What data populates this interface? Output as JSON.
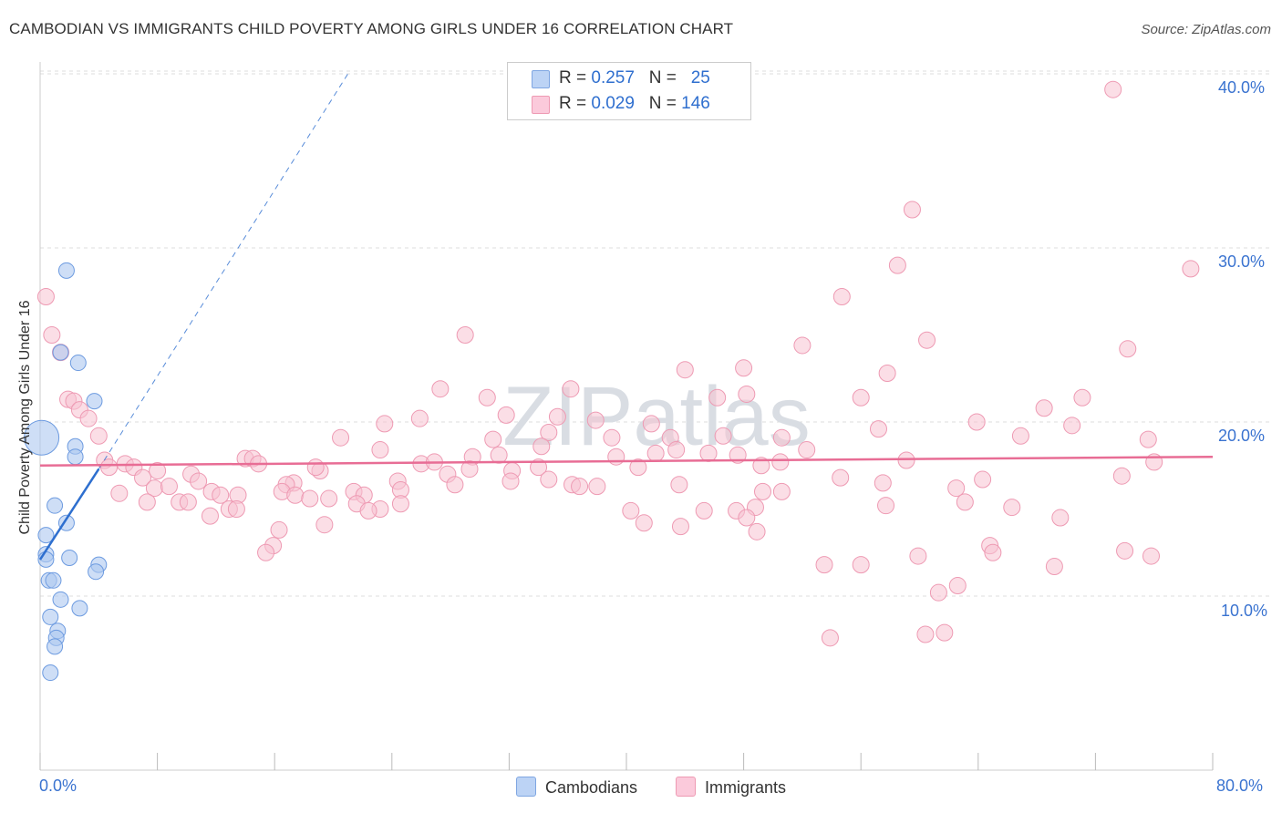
{
  "title": "CAMBODIAN VS IMMIGRANTS CHILD POVERTY AMONG GIRLS UNDER 16 CORRELATION CHART",
  "source": "Source: ZipAtlas.com",
  "watermark": "ZIPatlas",
  "legend": {
    "rows": [
      {
        "r_label": "R =",
        "r_value": "0.257",
        "n_label": "N =",
        "n_value": "25",
        "color": "#adc8f0"
      },
      {
        "r_label": "R =",
        "r_value": "0.029",
        "n_label": "N =",
        "n_value": "146",
        "color": "#f7b9cc"
      }
    ]
  },
  "bottom_legend": {
    "cambodians": "Cambodians",
    "immigrants": "Immigrants"
  },
  "colors": {
    "blue_fill": "#adc8f0",
    "blue_stroke": "#6d9be0",
    "blue_line": "#2e6fcf",
    "pink_fill": "#f7c3d2",
    "pink_stroke": "#ee9ab3",
    "pink_line": "#e86d95",
    "tick_text": "#3a73d0",
    "grid": "#dddddd"
  },
  "chart_data": {
    "type": "scatter",
    "title": "CAMBODIAN VS IMMIGRANTS CHILD POVERTY AMONG GIRLS UNDER 16 CORRELATION CHART",
    "xlabel": "",
    "ylabel": "Child Poverty Among Girls Under 16",
    "xlim": [
      0,
      80
    ],
    "ylim": [
      0,
      42
    ],
    "x_tick_labels": [
      "0.0%",
      "80.0%"
    ],
    "y_ticks": [
      10,
      20,
      30,
      40
    ],
    "y_tick_labels": [
      "10.0%",
      "20.0%",
      "30.0%",
      "40.0%"
    ],
    "grid": true,
    "series": [
      {
        "name": "Cambodians",
        "r": 0.257,
        "n": 25,
        "trend": {
          "x0": 0,
          "y0": 12.1,
          "x1": 4,
          "y1": 17.3,
          "dash_to_x": 21,
          "dash_to_y": 40
        },
        "points": [
          [
            0.1,
            19.1,
            "big"
          ],
          [
            1.8,
            28.7
          ],
          [
            1.4,
            24.0
          ],
          [
            2.6,
            23.4
          ],
          [
            3.7,
            21.2
          ],
          [
            2.4,
            18.6
          ],
          [
            2.4,
            18.0
          ],
          [
            1.0,
            15.2
          ],
          [
            1.8,
            14.2
          ],
          [
            0.4,
            13.5
          ],
          [
            0.4,
            12.4
          ],
          [
            0.4,
            12.1
          ],
          [
            2.0,
            12.2
          ],
          [
            4.0,
            11.8
          ],
          [
            3.8,
            11.4
          ],
          [
            0.6,
            10.9
          ],
          [
            0.9,
            10.9
          ],
          [
            1.4,
            9.8
          ],
          [
            2.7,
            9.3
          ],
          [
            0.7,
            8.8
          ],
          [
            1.2,
            8.0
          ],
          [
            1.1,
            7.6
          ],
          [
            1.0,
            7.1
          ],
          [
            0.7,
            5.6
          ]
        ]
      },
      {
        "name": "Immigrants",
        "r": 0.029,
        "n": 146,
        "trend": {
          "x0": 0,
          "y0": 17.5,
          "x1": 80,
          "y1": 18.0
        },
        "points": [
          [
            73.2,
            39.1
          ],
          [
            59.5,
            32.2
          ],
          [
            58.5,
            29.0
          ],
          [
            78.5,
            28.8
          ],
          [
            54.7,
            27.2
          ],
          [
            0.4,
            27.2
          ],
          [
            0.8,
            25.0
          ],
          [
            29.0,
            25.0
          ],
          [
            60.5,
            24.7
          ],
          [
            52.0,
            24.4
          ],
          [
            74.2,
            24.2
          ],
          [
            1.4,
            24.0
          ],
          [
            44.0,
            23.0
          ],
          [
            48.0,
            23.1
          ],
          [
            57.8,
            22.8
          ],
          [
            27.3,
            21.9
          ],
          [
            36.2,
            21.9
          ],
          [
            48.2,
            21.6
          ],
          [
            46.2,
            21.4
          ],
          [
            30.5,
            21.4
          ],
          [
            56.0,
            21.4
          ],
          [
            71.1,
            21.4
          ],
          [
            1.9,
            21.3
          ],
          [
            2.3,
            21.2
          ],
          [
            68.5,
            20.8
          ],
          [
            2.7,
            20.7
          ],
          [
            3.3,
            20.2
          ],
          [
            31.8,
            20.4
          ],
          [
            35.3,
            20.3
          ],
          [
            25.9,
            20.2
          ],
          [
            37.9,
            20.1
          ],
          [
            63.9,
            20.0
          ],
          [
            23.5,
            19.9
          ],
          [
            41.7,
            19.9
          ],
          [
            57.2,
            19.6
          ],
          [
            70.4,
            19.8
          ],
          [
            4.0,
            19.2
          ],
          [
            20.5,
            19.1
          ],
          [
            34.7,
            19.4
          ],
          [
            43.0,
            19.1
          ],
          [
            46.6,
            19.2
          ],
          [
            50.6,
            19.1
          ],
          [
            66.9,
            19.2
          ],
          [
            75.6,
            19.0
          ],
          [
            30.9,
            19.0
          ],
          [
            34.2,
            18.6
          ],
          [
            39.0,
            19.1
          ],
          [
            43.4,
            18.4
          ],
          [
            52.3,
            18.4
          ],
          [
            23.2,
            18.4
          ],
          [
            45.6,
            18.2
          ],
          [
            29.5,
            18.0
          ],
          [
            31.3,
            18.1
          ],
          [
            39.3,
            18.0
          ],
          [
            47.6,
            18.1
          ],
          [
            42.0,
            18.2
          ],
          [
            14.0,
            17.9
          ],
          [
            14.5,
            17.9
          ],
          [
            4.4,
            17.8
          ],
          [
            5.8,
            17.6
          ],
          [
            6.4,
            17.4
          ],
          [
            4.7,
            17.4
          ],
          [
            14.9,
            17.6
          ],
          [
            26.0,
            17.6
          ],
          [
            26.9,
            17.7
          ],
          [
            49.2,
            17.5
          ],
          [
            50.5,
            17.7
          ],
          [
            59.1,
            17.8
          ],
          [
            76.0,
            17.7
          ],
          [
            8.0,
            17.2
          ],
          [
            10.3,
            17.0
          ],
          [
            19.1,
            17.2
          ],
          [
            18.8,
            17.4
          ],
          [
            27.8,
            17.0
          ],
          [
            29.3,
            17.3
          ],
          [
            32.2,
            17.2
          ],
          [
            34.0,
            17.4
          ],
          [
            40.8,
            17.4
          ],
          [
            7.0,
            16.8
          ],
          [
            10.8,
            16.6
          ],
          [
            54.6,
            16.8
          ],
          [
            64.3,
            16.7
          ],
          [
            73.8,
            16.9
          ],
          [
            17.3,
            16.5
          ],
          [
            16.8,
            16.4
          ],
          [
            24.4,
            16.6
          ],
          [
            28.3,
            16.4
          ],
          [
            32.1,
            16.6
          ],
          [
            34.7,
            16.7
          ],
          [
            36.3,
            16.4
          ],
          [
            36.8,
            16.3
          ],
          [
            38.0,
            16.3
          ],
          [
            43.6,
            16.4
          ],
          [
            57.5,
            16.5
          ],
          [
            7.8,
            16.2
          ],
          [
            8.8,
            16.3
          ],
          [
            11.7,
            16.0
          ],
          [
            16.5,
            16.0
          ],
          [
            21.4,
            16.0
          ],
          [
            22.1,
            15.8
          ],
          [
            24.6,
            16.1
          ],
          [
            49.3,
            16.0
          ],
          [
            50.6,
            16.0
          ],
          [
            62.5,
            16.2
          ],
          [
            5.4,
            15.9
          ],
          [
            12.3,
            15.8
          ],
          [
            13.5,
            15.8
          ],
          [
            17.4,
            15.8
          ],
          [
            18.4,
            15.6
          ],
          [
            19.7,
            15.6
          ],
          [
            7.3,
            15.4
          ],
          [
            9.5,
            15.4
          ],
          [
            10.1,
            15.4
          ],
          [
            12.9,
            15.0
          ],
          [
            13.4,
            15.0
          ],
          [
            21.6,
            15.3
          ],
          [
            23.2,
            15.0
          ],
          [
            24.6,
            15.3
          ],
          [
            48.8,
            15.1
          ],
          [
            57.7,
            15.2
          ],
          [
            63.1,
            15.4
          ],
          [
            66.3,
            15.1
          ],
          [
            11.6,
            14.6
          ],
          [
            22.4,
            14.9
          ],
          [
            40.3,
            14.9
          ],
          [
            45.3,
            14.9
          ],
          [
            47.5,
            14.9
          ],
          [
            48.2,
            14.5
          ],
          [
            69.6,
            14.5
          ],
          [
            19.4,
            14.1
          ],
          [
            41.2,
            14.2
          ],
          [
            43.7,
            14.0
          ],
          [
            48.9,
            13.7
          ],
          [
            16.3,
            13.8
          ],
          [
            15.9,
            12.9
          ],
          [
            15.4,
            12.5
          ],
          [
            64.8,
            12.9
          ],
          [
            65.0,
            12.5
          ],
          [
            74.0,
            12.6
          ],
          [
            75.8,
            12.3
          ],
          [
            59.9,
            12.3
          ],
          [
            53.5,
            11.8
          ],
          [
            56.0,
            11.8
          ],
          [
            69.2,
            11.7
          ],
          [
            62.6,
            10.6
          ],
          [
            61.3,
            10.2
          ],
          [
            60.4,
            7.8
          ],
          [
            61.7,
            7.9
          ],
          [
            53.9,
            7.6
          ]
        ]
      }
    ]
  }
}
